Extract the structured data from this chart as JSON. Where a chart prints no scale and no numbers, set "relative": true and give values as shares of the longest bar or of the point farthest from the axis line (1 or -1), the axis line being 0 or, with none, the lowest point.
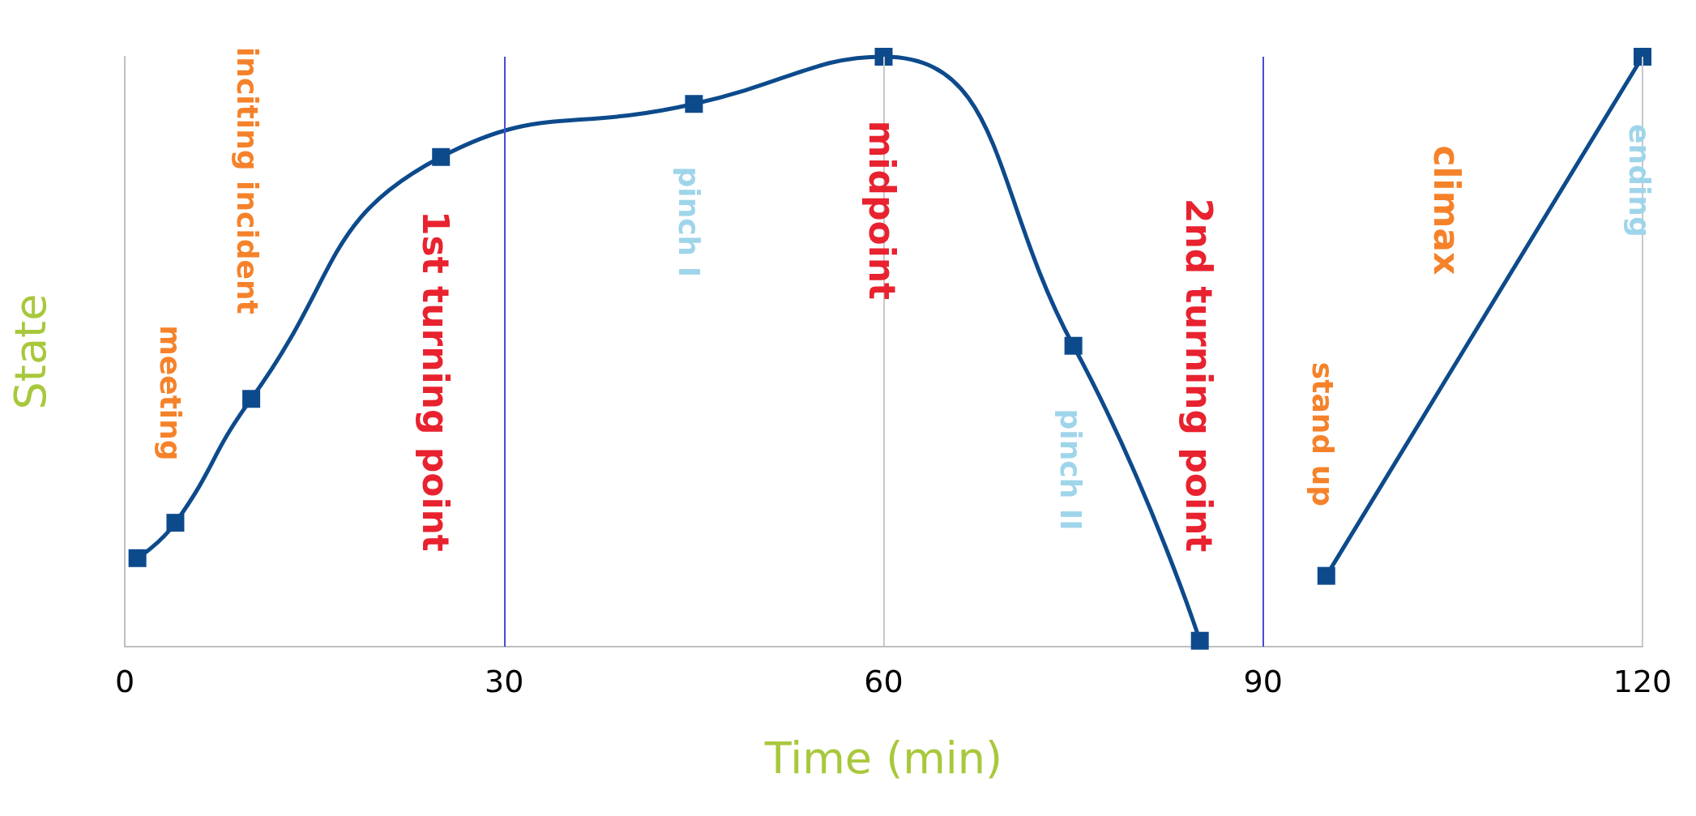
{
  "chart_data": {
    "type": "line",
    "relative": true,
    "xlabel": "Time (min)",
    "ylabel": "State",
    "xlim": [
      0,
      120
    ],
    "xticks": [
      0,
      30,
      60,
      90,
      120
    ],
    "marker": "square",
    "line_style": "solid",
    "series": [
      {
        "color": "#0d4a8c",
        "x": [
          1,
          4,
          10,
          25,
          45,
          60,
          75,
          85
        ],
        "values": [
          0.15,
          0.21,
          0.42,
          0.83,
          0.92,
          1,
          0.51,
          0.01
        ]
      },
      {
        "color": "#0d4a8c",
        "x": [
          95,
          120
        ],
        "values": [
          0.12,
          1
        ]
      }
    ],
    "ref_lines": [
      {
        "axis": "x",
        "value": 30,
        "color": "#4b4bd6"
      },
      {
        "axis": "x",
        "value": 60,
        "color": "#c8c8c8"
      },
      {
        "axis": "x",
        "value": 90,
        "color": "#4b4bd6"
      },
      {
        "axis": "x",
        "value": 120,
        "color": "#c8c8c8"
      }
    ],
    "annotations": [
      "meeting",
      "inciting incident",
      "1st turning point",
      "pinch I",
      "midpoint",
      "pinch II",
      "2nd turning point",
      "stand up",
      "climax",
      "ending"
    ]
  }
}
